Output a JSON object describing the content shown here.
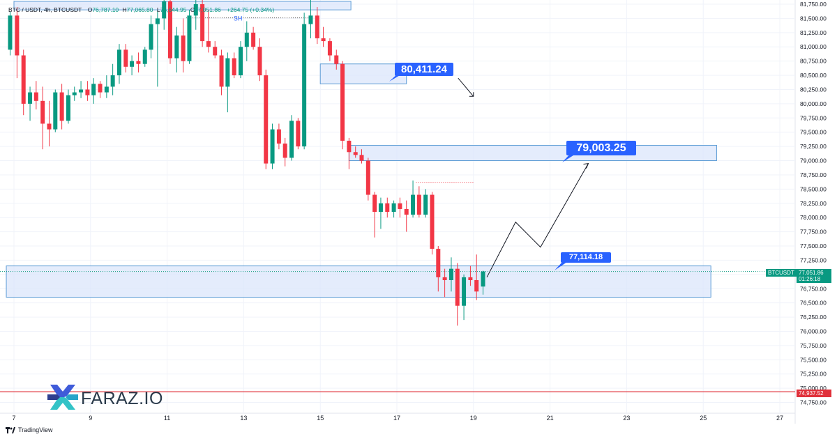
{
  "header": {
    "symbol": "BTC / USDT, 4h, BTCUSDT",
    "open_label": "O",
    "open": "76,787.10",
    "high_label": "H",
    "high": "77,065.80",
    "low_label": "L",
    "low": "76,644.95",
    "close_label": "C",
    "close": "77,051.86",
    "change": "+264.75 (+0.34%)"
  },
  "annotations": {
    "sh_label": "SH",
    "callout_1": "80,411.24",
    "callout_2": "79,003.25",
    "callout_3": "77,114.18"
  },
  "price_tags": {
    "symbol_tag": "BTCUSDT",
    "current_price": "77,051.86",
    "countdown": "01:26:18",
    "red_line_price": "74,937.52"
  },
  "branding": {
    "logo_text": "FARAZ.IO",
    "footer_text": "TradingView"
  },
  "colors": {
    "up": "#089981",
    "down": "#f23645",
    "zone_fill": "#dbe5fb",
    "zone_stroke": "#5b9bd5",
    "callout": "#2962ff",
    "red_line": "#e0303a"
  },
  "chart_data": {
    "type": "candlestick",
    "title": "BTC / USDT, 4h, BTCUSDT",
    "timeframe": "4h",
    "x_tick_labels": [
      "7",
      "9",
      "11",
      "13",
      "15",
      "17",
      "19",
      "21",
      "23",
      "25",
      "27"
    ],
    "y_tick_labels": [
      "81,750.00",
      "81,500.00",
      "81,250.00",
      "81,000.00",
      "80,750.00",
      "80,500.00",
      "80,250.00",
      "80,000.00",
      "79,750.00",
      "79,500.00",
      "79,250.00",
      "79,000.00",
      "78,750.00",
      "78,500.00",
      "78,250.00",
      "78,000.00",
      "77,750.00",
      "77,500.00",
      "77,250.00",
      "77,000.00",
      "76,750.00",
      "76,500.00",
      "76,250.00",
      "76,000.00",
      "75,750.00",
      "75,500.00",
      "75,250.00",
      "75,000.00",
      "74,750.00"
    ],
    "ylim": [
      74650,
      81800
    ],
    "candles": [
      {
        "t": 6.9,
        "o": 80950,
        "h": 81620,
        "l": 80850,
        "c": 81550
      },
      {
        "t": 7.08,
        "o": 81550,
        "h": 81700,
        "l": 80450,
        "c": 80850
      },
      {
        "t": 7.25,
        "o": 80850,
        "h": 80950,
        "l": 79800,
        "c": 80000
      },
      {
        "t": 7.42,
        "o": 80000,
        "h": 80300,
        "l": 79700,
        "c": 80200
      },
      {
        "t": 7.58,
        "o": 80200,
        "h": 80400,
        "l": 79900,
        "c": 80050
      },
      {
        "t": 7.75,
        "o": 80050,
        "h": 80300,
        "l": 79200,
        "c": 79650
      },
      {
        "t": 7.92,
        "o": 79650,
        "h": 80050,
        "l": 79250,
        "c": 79550
      },
      {
        "t": 8.08,
        "o": 79550,
        "h": 80250,
        "l": 79500,
        "c": 80200
      },
      {
        "t": 8.25,
        "o": 80200,
        "h": 80350,
        "l": 79550,
        "c": 79700
      },
      {
        "t": 8.42,
        "o": 79700,
        "h": 80250,
        "l": 79650,
        "c": 80150
      },
      {
        "t": 8.58,
        "o": 80150,
        "h": 80300,
        "l": 80050,
        "c": 80200
      },
      {
        "t": 8.75,
        "o": 80200,
        "h": 80400,
        "l": 80100,
        "c": 80250
      },
      {
        "t": 8.92,
        "o": 80250,
        "h": 80400,
        "l": 80050,
        "c": 80150
      },
      {
        "t": 9.08,
        "o": 80150,
        "h": 80450,
        "l": 80000,
        "c": 80350
      },
      {
        "t": 9.25,
        "o": 80350,
        "h": 80400,
        "l": 80100,
        "c": 80200
      },
      {
        "t": 9.42,
        "o": 80200,
        "h": 80500,
        "l": 80100,
        "c": 80300
      },
      {
        "t": 9.58,
        "o": 80300,
        "h": 80700,
        "l": 80150,
        "c": 80500
      },
      {
        "t": 9.75,
        "o": 80500,
        "h": 81050,
        "l": 80350,
        "c": 80950
      },
      {
        "t": 9.92,
        "o": 80950,
        "h": 81050,
        "l": 80550,
        "c": 80650
      },
      {
        "t": 10.08,
        "o": 80650,
        "h": 80850,
        "l": 80500,
        "c": 80750
      },
      {
        "t": 10.25,
        "o": 80750,
        "h": 80900,
        "l": 80550,
        "c": 80700
      },
      {
        "t": 10.42,
        "o": 80700,
        "h": 81000,
        "l": 80650,
        "c": 80950
      },
      {
        "t": 10.58,
        "o": 80950,
        "h": 81550,
        "l": 80800,
        "c": 81400
      },
      {
        "t": 10.75,
        "o": 81400,
        "h": 81650,
        "l": 80300,
        "c": 81500
      },
      {
        "t": 10.92,
        "o": 81500,
        "h": 81900,
        "l": 81300,
        "c": 81800
      },
      {
        "t": 11.08,
        "o": 81800,
        "h": 81900,
        "l": 80700,
        "c": 80800
      },
      {
        "t": 11.25,
        "o": 80800,
        "h": 81350,
        "l": 80550,
        "c": 81200
      },
      {
        "t": 11.42,
        "o": 81200,
        "h": 81500,
        "l": 80550,
        "c": 80750
      },
      {
        "t": 11.58,
        "o": 80750,
        "h": 81650,
        "l": 80700,
        "c": 81550
      },
      {
        "t": 11.75,
        "o": 81550,
        "h": 81850,
        "l": 81300,
        "c": 81750
      },
      {
        "t": 11.92,
        "o": 81750,
        "h": 81850,
        "l": 81000,
        "c": 81100
      },
      {
        "t": 12.08,
        "o": 81100,
        "h": 81650,
        "l": 80900,
        "c": 81000
      },
      {
        "t": 12.25,
        "o": 81000,
        "h": 81100,
        "l": 80800,
        "c": 80850
      },
      {
        "t": 12.42,
        "o": 80850,
        "h": 80950,
        "l": 80150,
        "c": 80300
      },
      {
        "t": 12.58,
        "o": 80300,
        "h": 80900,
        "l": 79850,
        "c": 80800
      },
      {
        "t": 12.75,
        "o": 80800,
        "h": 80900,
        "l": 80450,
        "c": 80500
      },
      {
        "t": 12.92,
        "o": 80500,
        "h": 81100,
        "l": 80450,
        "c": 81000
      },
      {
        "t": 13.08,
        "o": 81000,
        "h": 81450,
        "l": 80750,
        "c": 81250
      },
      {
        "t": 13.25,
        "o": 81250,
        "h": 81350,
        "l": 80950,
        "c": 81000
      },
      {
        "t": 13.42,
        "o": 81000,
        "h": 81150,
        "l": 80400,
        "c": 80500
      },
      {
        "t": 13.58,
        "o": 80500,
        "h": 80600,
        "l": 78850,
        "c": 78950
      },
      {
        "t": 13.75,
        "o": 78950,
        "h": 79650,
        "l": 78850,
        "c": 79550
      },
      {
        "t": 13.92,
        "o": 79550,
        "h": 79650,
        "l": 79200,
        "c": 79300
      },
      {
        "t": 14.08,
        "o": 79300,
        "h": 79400,
        "l": 78900,
        "c": 79050
      },
      {
        "t": 14.25,
        "o": 79050,
        "h": 79800,
        "l": 79000,
        "c": 79700
      },
      {
        "t": 14.42,
        "o": 79700,
        "h": 79750,
        "l": 79200,
        "c": 79250
      },
      {
        "t": 14.58,
        "o": 79250,
        "h": 81600,
        "l": 79200,
        "c": 81400
      },
      {
        "t": 14.75,
        "o": 81400,
        "h": 81900,
        "l": 81150,
        "c": 81550
      },
      {
        "t": 14.92,
        "o": 81550,
        "h": 81700,
        "l": 81050,
        "c": 81150
      },
      {
        "t": 15.08,
        "o": 81150,
        "h": 81350,
        "l": 81000,
        "c": 81100
      },
      {
        "t": 15.25,
        "o": 81100,
        "h": 81150,
        "l": 80750,
        "c": 80850
      },
      {
        "t": 15.42,
        "o": 80850,
        "h": 80950,
        "l": 80600,
        "c": 80700
      },
      {
        "t": 15.58,
        "o": 80700,
        "h": 80750,
        "l": 79200,
        "c": 79350
      },
      {
        "t": 15.75,
        "o": 79350,
        "h": 79400,
        "l": 78850,
        "c": 79150
      },
      {
        "t": 15.92,
        "o": 79150,
        "h": 79250,
        "l": 79050,
        "c": 79100
      },
      {
        "t": 16.08,
        "o": 79100,
        "h": 79200,
        "l": 78950,
        "c": 79000
      },
      {
        "t": 16.25,
        "o": 79000,
        "h": 79050,
        "l": 78300,
        "c": 78400
      },
      {
        "t": 16.42,
        "o": 78400,
        "h": 78450,
        "l": 77650,
        "c": 78100
      },
      {
        "t": 16.58,
        "o": 78100,
        "h": 78350,
        "l": 77800,
        "c": 78250
      },
      {
        "t": 16.75,
        "o": 78250,
        "h": 78350,
        "l": 78000,
        "c": 78100
      },
      {
        "t": 16.92,
        "o": 78100,
        "h": 78300,
        "l": 78000,
        "c": 78250
      },
      {
        "t": 17.08,
        "o": 78250,
        "h": 78350,
        "l": 78000,
        "c": 78150
      },
      {
        "t": 17.25,
        "o": 78150,
        "h": 78300,
        "l": 77750,
        "c": 78050
      },
      {
        "t": 17.42,
        "o": 78050,
        "h": 78650,
        "l": 78000,
        "c": 78400
      },
      {
        "t": 17.58,
        "o": 78400,
        "h": 78550,
        "l": 78000,
        "c": 78050
      },
      {
        "t": 17.75,
        "o": 78050,
        "h": 78500,
        "l": 78000,
        "c": 78400
      },
      {
        "t": 17.92,
        "o": 78400,
        "h": 78450,
        "l": 77350,
        "c": 77450
      },
      {
        "t": 18.08,
        "o": 77450,
        "h": 77500,
        "l": 76700,
        "c": 76950
      },
      {
        "t": 18.25,
        "o": 76950,
        "h": 77100,
        "l": 76600,
        "c": 76900
      },
      {
        "t": 18.42,
        "o": 76900,
        "h": 77300,
        "l": 76700,
        "c": 77100
      },
      {
        "t": 18.58,
        "o": 77100,
        "h": 77200,
        "l": 76100,
        "c": 76450
      },
      {
        "t": 18.75,
        "o": 76450,
        "h": 77000,
        "l": 76200,
        "c": 76950
      },
      {
        "t": 18.92,
        "o": 76950,
        "h": 77150,
        "l": 76800,
        "c": 76900
      },
      {
        "t": 19.08,
        "o": 76900,
        "h": 77350,
        "l": 76550,
        "c": 76700
      },
      {
        "t": 19.25,
        "o": 76787,
        "h": 77066,
        "l": 76645,
        "c": 77052
      }
    ],
    "zones": [
      {
        "label": "top-zone",
        "y_top": 81800,
        "y_bottom": 81650,
        "x_from": 7.0,
        "x_to": 15.8
      },
      {
        "label": "80,411.24",
        "y_top": 80700,
        "y_bottom": 80350,
        "x_from": 15.0,
        "x_to": 17.25
      },
      {
        "label": "79,003.25",
        "y_top": 79270,
        "y_bottom": 79000,
        "x_from": 15.75,
        "x_to": 25.35
      },
      {
        "label": "77,114.18",
        "y_top": 77150,
        "y_bottom": 76600,
        "x_from": 6.8,
        "x_to": 25.2
      }
    ],
    "swing_high_line": {
      "label": "SH",
      "y": 81510,
      "x_from": 11.5,
      "x_to": 14.7
    },
    "dotted_levels": [
      {
        "y": 78620,
        "x_from": 17.5,
        "x_to": 19.0
      }
    ],
    "projection_path": [
      {
        "x": 19.35,
        "y": 76950
      },
      {
        "x": 20.1,
        "y": 77920
      },
      {
        "x": 20.75,
        "y": 77480
      },
      {
        "x": 22.0,
        "y": 78950
      }
    ],
    "short_arrow": [
      {
        "x": 18.6,
        "y": 80450
      },
      {
        "x": 19.0,
        "y": 80130
      }
    ],
    "current_price": 77051.86,
    "red_line": 74937.52
  }
}
